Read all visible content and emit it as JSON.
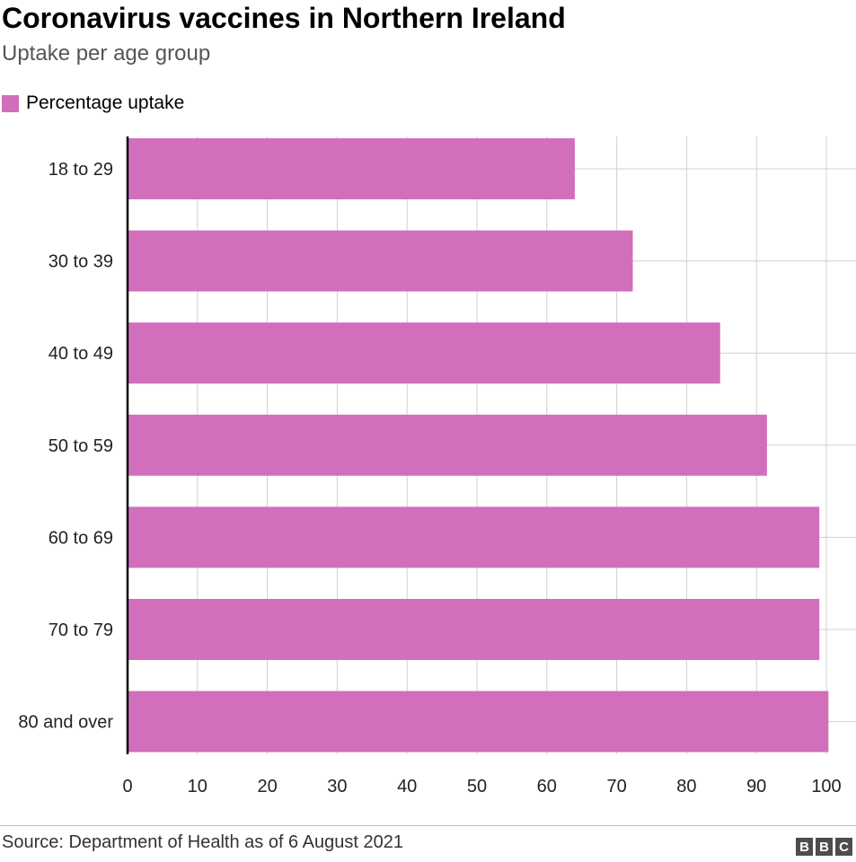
{
  "title": "Coronavirus vaccines in Northern Ireland",
  "subtitle": "Uptake per age group",
  "legend_label": "Percentage uptake",
  "source": "Source: Department of Health as of 6 August 2021",
  "logo": [
    "B",
    "B",
    "C"
  ],
  "colors": {
    "bar": "#d16fbd",
    "grid": "#d0d0d0",
    "axis": "#000000"
  },
  "chart_data": {
    "type": "bar",
    "orientation": "horizontal",
    "title": "Coronavirus vaccines in Northern Ireland",
    "subtitle": "Uptake per age group",
    "categories": [
      "18 to 29",
      "30 to 39",
      "40 to 49",
      "50 to 59",
      "60 to 69",
      "70 to 79",
      "80 and over"
    ],
    "series": [
      {
        "name": "Percentage uptake",
        "values": [
          64,
          72.3,
          84.8,
          91.5,
          99,
          99,
          100.3
        ]
      }
    ],
    "xlim": [
      0,
      100
    ],
    "xticks": [
      0,
      10,
      20,
      30,
      40,
      50,
      60,
      70,
      80,
      90,
      100
    ],
    "grid": true,
    "legend_position": "top-left"
  }
}
